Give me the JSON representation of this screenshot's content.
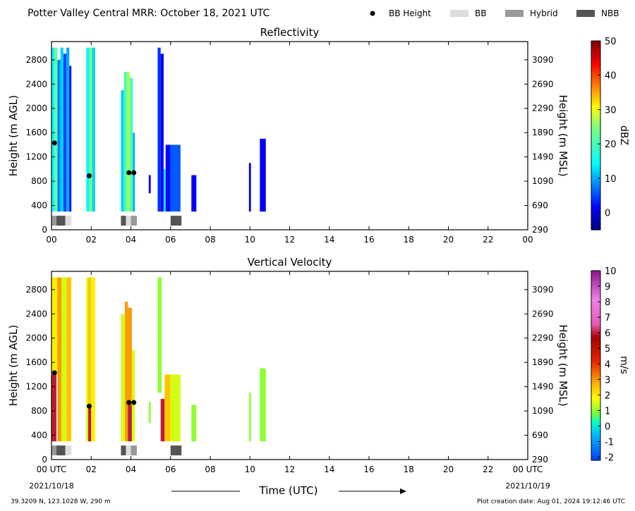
{
  "header": {
    "title": "Potter Valley Central MRR:  October 18, 2021 UTC",
    "legend": [
      {
        "label": "BB Height",
        "marker": "dot",
        "color": "#000000"
      },
      {
        "label": "BB",
        "marker": "swatch",
        "color": "#dddddd"
      },
      {
        "label": "Hybrid",
        "marker": "swatch",
        "color": "#999999"
      },
      {
        "label": "NBB",
        "marker": "swatch",
        "color": "#555555"
      }
    ]
  },
  "footer": {
    "location": "39.3209 N, 123.1028 W, 290 m",
    "creation": "Plot creation date: Aug 01, 2024 19:12:46 UTC",
    "time_label": "Time (UTC)",
    "start_date": "2021/10/18",
    "end_date": "2021/10/19"
  },
  "chart_data": [
    {
      "type": "heatmap",
      "title": "Reflectivity",
      "ylabel": "Height (m AGL)",
      "ylabel_right": "Height (m MSL)",
      "xlim": [
        0,
        24
      ],
      "ylim": [
        0,
        3100
      ],
      "x_tick_labels": [
        "00",
        "02",
        "04",
        "06",
        "08",
        "10",
        "12",
        "14",
        "16",
        "18",
        "20",
        "22",
        "00"
      ],
      "y_ticks_left": [
        "0",
        "400",
        "800",
        "1200",
        "1600",
        "2000",
        "2400",
        "2800"
      ],
      "y_ticks_right": [
        "290",
        "690",
        "1090",
        "1490",
        "1890",
        "2290",
        "2690",
        "3090"
      ],
      "colorbar": {
        "label": "dBZ",
        "range": [
          -5,
          50
        ],
        "ticks": [
          "0",
          "10",
          "20",
          "30",
          "40",
          "50"
        ],
        "scheme": "jet"
      },
      "cells": [
        {
          "x": [
            0.0,
            0.15
          ],
          "y": [
            300,
            3000
          ],
          "v": 15
        },
        {
          "x": [
            0.15,
            0.3
          ],
          "y": [
            300,
            3000
          ],
          "v": 22
        },
        {
          "x": [
            0.3,
            0.45
          ],
          "y": [
            300,
            2800
          ],
          "v": 8
        },
        {
          "x": [
            0.45,
            0.6
          ],
          "y": [
            300,
            3000
          ],
          "v": 12
        },
        {
          "x": [
            0.6,
            0.75
          ],
          "y": [
            300,
            2900
          ],
          "v": 5
        },
        {
          "x": [
            0.75,
            0.9
          ],
          "y": [
            300,
            3000
          ],
          "v": 10
        },
        {
          "x": [
            0.9,
            1.0
          ],
          "y": [
            300,
            2700
          ],
          "v": 2
        },
        {
          "x": [
            1.75,
            1.9
          ],
          "y": [
            300,
            3000
          ],
          "v": 14
        },
        {
          "x": [
            1.9,
            2.05
          ],
          "y": [
            300,
            3000
          ],
          "v": 24
        },
        {
          "x": [
            2.05,
            2.2
          ],
          "y": [
            300,
            3000
          ],
          "v": 12
        },
        {
          "x": [
            3.5,
            3.65
          ],
          "y": [
            300,
            2300
          ],
          "v": 12
        },
        {
          "x": [
            3.65,
            3.8
          ],
          "y": [
            300,
            2600
          ],
          "v": 20
        },
        {
          "x": [
            3.8,
            3.95
          ],
          "y": [
            300,
            2600
          ],
          "v": 27
        },
        {
          "x": [
            3.95,
            4.1
          ],
          "y": [
            300,
            2500
          ],
          "v": 20
        },
        {
          "x": [
            4.1,
            4.2
          ],
          "y": [
            300,
            1600
          ],
          "v": 10
        },
        {
          "x": [
            4.9,
            5.0
          ],
          "y": [
            600,
            900
          ],
          "v": 1
        },
        {
          "x": [
            5.35,
            5.5
          ],
          "y": [
            300,
            3000
          ],
          "v": 4
        },
        {
          "x": [
            5.5,
            5.65
          ],
          "y": [
            300,
            2900
          ],
          "v": 1
        },
        {
          "x": [
            5.65,
            5.75
          ],
          "y": [
            300,
            1000
          ],
          "v": 14
        },
        {
          "x": [
            5.75,
            6.0
          ],
          "y": [
            300,
            1400
          ],
          "v": 2
        },
        {
          "x": [
            6.0,
            6.5
          ],
          "y": [
            300,
            1400
          ],
          "v": 6
        },
        {
          "x": [
            7.05,
            7.3
          ],
          "y": [
            300,
            900
          ],
          "v": 1
        },
        {
          "x": [
            9.95,
            10.05
          ],
          "y": [
            300,
            1100
          ],
          "v": 0
        },
        {
          "x": [
            10.5,
            10.8
          ],
          "y": [
            300,
            1500
          ],
          "v": 1
        }
      ],
      "bright_band_height": [
        {
          "x": 0.15,
          "y": 1430
        },
        {
          "x": 1.9,
          "y": 890
        },
        {
          "x": 3.9,
          "y": 940
        },
        {
          "x": 4.15,
          "y": 940
        }
      ],
      "bb_type_bar": [
        {
          "x": [
            0.0,
            0.25
          ],
          "type": "Hybrid"
        },
        {
          "x": [
            0.25,
            0.7
          ],
          "type": "NBB"
        },
        {
          "x": [
            0.7,
            1.0
          ],
          "type": "BB"
        },
        {
          "x": [
            3.5,
            3.75
          ],
          "type": "NBB"
        },
        {
          "x": [
            3.75,
            4.0
          ],
          "type": "BB"
        },
        {
          "x": [
            4.0,
            4.3
          ],
          "type": "Hybrid"
        },
        {
          "x": [
            6.0,
            6.55
          ],
          "type": "NBB"
        }
      ]
    },
    {
      "type": "heatmap",
      "title": "Vertical Velocity",
      "ylabel": "Height (m AGL)",
      "ylabel_right": "Height (m MSL)",
      "xlim": [
        0,
        24
      ],
      "ylim": [
        0,
        3100
      ],
      "x_tick_labels": [
        "00 UTC",
        "02",
        "04",
        "06",
        "08",
        "10",
        "12",
        "14",
        "16",
        "18",
        "20",
        "22",
        "00 UTC"
      ],
      "y_ticks_left": [
        "0",
        "400",
        "800",
        "1200",
        "1600",
        "2000",
        "2400",
        "2800"
      ],
      "y_ticks_right": [
        "290",
        "690",
        "1090",
        "1490",
        "1890",
        "2290",
        "2690",
        "3090"
      ],
      "colorbar": {
        "label": "m/s",
        "range": [
          -2.2,
          10
        ],
        "ticks": [
          "-2",
          "-1",
          "0",
          "1",
          "2",
          "3",
          "4",
          "5",
          "6",
          "7",
          "8",
          "9",
          "10"
        ],
        "scheme": "velocity"
      },
      "cells": [
        {
          "x": [
            0.0,
            0.25
          ],
          "y": [
            300,
            1400
          ],
          "v": 6
        },
        {
          "x": [
            0.0,
            0.3
          ],
          "y": [
            1400,
            3000
          ],
          "v": 2
        },
        {
          "x": [
            0.3,
            0.5
          ],
          "y": [
            300,
            3000
          ],
          "v": 3
        },
        {
          "x": [
            0.5,
            0.75
          ],
          "y": [
            300,
            3000
          ],
          "v": 1.5
        },
        {
          "x": [
            0.75,
            1.0
          ],
          "y": [
            300,
            3000
          ],
          "v": 2.5
        },
        {
          "x": [
            1.75,
            1.85
          ],
          "y": [
            300,
            3000
          ],
          "v": 1.5
        },
        {
          "x": [
            1.85,
            2.0
          ],
          "y": [
            300,
            850
          ],
          "v": 6
        },
        {
          "x": [
            1.85,
            2.0
          ],
          "y": [
            850,
            3000
          ],
          "v": 2.5
        },
        {
          "x": [
            2.0,
            2.2
          ],
          "y": [
            300,
            3000
          ],
          "v": 2
        },
        {
          "x": [
            3.5,
            3.7
          ],
          "y": [
            300,
            2400
          ],
          "v": 1.5
        },
        {
          "x": [
            3.7,
            3.85
          ],
          "y": [
            300,
            2600
          ],
          "v": 3
        },
        {
          "x": [
            3.85,
            4.05
          ],
          "y": [
            300,
            900
          ],
          "v": 6
        },
        {
          "x": [
            3.85,
            4.05
          ],
          "y": [
            900,
            2500
          ],
          "v": 3
        },
        {
          "x": [
            4.05,
            4.2
          ],
          "y": [
            300,
            1800
          ],
          "v": 1.5
        },
        {
          "x": [
            4.9,
            5.0
          ],
          "y": [
            600,
            950
          ],
          "v": 1
        },
        {
          "x": [
            5.35,
            5.55
          ],
          "y": [
            1100,
            3000
          ],
          "v": 1
        },
        {
          "x": [
            5.5,
            5.7
          ],
          "y": [
            300,
            1000
          ],
          "v": 6
        },
        {
          "x": [
            5.7,
            6.0
          ],
          "y": [
            300,
            1400
          ],
          "v": 2.5
        },
        {
          "x": [
            6.0,
            6.5
          ],
          "y": [
            300,
            1400
          ],
          "v": 1.5
        },
        {
          "x": [
            7.05,
            7.3
          ],
          "y": [
            300,
            900
          ],
          "v": 1
        },
        {
          "x": [
            9.95,
            10.05
          ],
          "y": [
            300,
            1100
          ],
          "v": 1
        },
        {
          "x": [
            10.5,
            10.8
          ],
          "y": [
            300,
            1500
          ],
          "v": 1
        }
      ],
      "bright_band_height": [
        {
          "x": 0.15,
          "y": 1430
        },
        {
          "x": 1.9,
          "y": 880
        },
        {
          "x": 3.9,
          "y": 940
        },
        {
          "x": 4.15,
          "y": 940
        }
      ],
      "bb_type_bar": [
        {
          "x": [
            0.0,
            0.25
          ],
          "type": "Hybrid"
        },
        {
          "x": [
            0.25,
            0.7
          ],
          "type": "NBB"
        },
        {
          "x": [
            0.7,
            1.0
          ],
          "type": "BB"
        },
        {
          "x": [
            3.5,
            3.75
          ],
          "type": "NBB"
        },
        {
          "x": [
            3.75,
            4.0
          ],
          "type": "BB"
        },
        {
          "x": [
            4.0,
            4.3
          ],
          "type": "Hybrid"
        },
        {
          "x": [
            6.0,
            6.55
          ],
          "type": "NBB"
        }
      ]
    }
  ]
}
